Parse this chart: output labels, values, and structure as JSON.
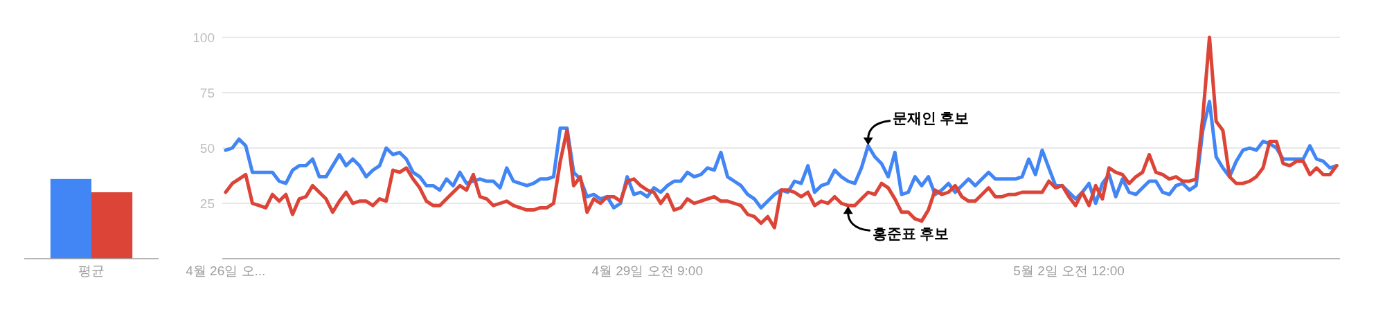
{
  "chart_data": [
    {
      "type": "bar",
      "categories": [
        "평균"
      ],
      "series": [
        {
          "color": "#4285f4",
          "values": [
            36
          ]
        },
        {
          "color": "#db4437",
          "values": [
            30
          ]
        }
      ],
      "ylim": [
        0,
        100
      ],
      "tick_labels": "x"
    },
    {
      "type": "line",
      "categories": [
        "4월 26일 오...",
        null,
        null,
        null,
        null,
        null,
        null,
        null,
        null,
        null,
        null,
        null,
        null,
        null,
        null,
        null,
        null,
        null,
        null,
        null,
        null,
        null,
        null,
        null,
        null,
        null,
        null,
        null,
        null,
        null,
        null,
        null,
        null,
        null,
        null,
        null,
        null,
        null,
        null,
        null,
        null,
        null,
        null,
        null,
        null,
        null,
        null,
        null,
        null,
        null,
        null,
        null,
        null,
        null,
        null,
        null,
        null,
        null,
        null,
        null,
        null,
        null,
        null,
        "4월 29일 오전 9:00",
        null,
        null,
        null,
        null,
        null,
        null,
        null,
        null,
        null,
        null,
        null,
        null,
        null,
        null,
        null,
        null,
        null,
        null,
        null,
        null,
        null,
        null,
        null,
        null,
        null,
        null,
        null,
        null,
        null,
        null,
        null,
        null,
        null,
        null,
        null,
        null,
        null,
        null,
        null,
        null,
        null,
        null,
        null,
        null,
        null,
        null,
        null,
        null,
        null,
        null,
        null,
        null,
        null,
        null,
        null,
        null,
        null,
        null,
        null,
        null,
        null,
        null,
        "5월 2일 오전 12:00",
        null,
        null,
        null,
        null,
        null,
        null,
        null,
        null,
        null,
        null,
        null,
        null,
        null,
        null,
        null,
        null,
        null,
        null,
        null,
        null,
        null,
        null,
        null,
        null,
        null,
        null,
        null,
        null,
        null,
        null,
        null,
        null,
        null,
        null,
        null,
        null,
        null,
        null,
        null,
        null
      ],
      "ylim": [
        0,
        100
      ],
      "yticks": [
        25,
        50,
        75,
        100
      ],
      "grid": "y",
      "series": [
        {
          "name": "문재인 후보",
          "color": "#4285f4",
          "values": [
            49,
            50,
            54,
            51,
            39,
            39,
            39,
            39,
            35,
            34,
            40,
            42,
            42,
            45,
            37,
            37,
            42,
            47,
            42,
            45,
            42,
            37,
            40,
            42,
            50,
            47,
            48,
            45,
            39,
            37,
            33,
            33,
            31,
            36,
            33,
            39,
            34,
            35,
            36,
            35,
            35,
            32,
            41,
            35,
            34,
            33,
            34,
            36,
            36,
            37,
            59,
            59,
            39,
            36,
            28,
            29,
            27,
            28,
            23,
            25,
            37,
            29,
            30,
            28,
            32,
            30,
            33,
            35,
            35,
            39,
            37,
            38,
            41,
            40,
            48,
            37,
            35,
            33,
            29,
            27,
            23,
            26,
            29,
            31,
            30,
            35,
            34,
            42,
            30,
            33,
            34,
            40,
            37,
            35,
            34,
            41,
            51,
            46,
            43,
            37,
            48,
            29,
            30,
            37,
            33,
            37,
            29,
            31,
            34,
            30,
            33,
            36,
            33,
            36,
            39,
            36,
            36,
            36,
            36,
            37,
            45,
            38,
            49,
            41,
            33,
            33,
            30,
            27,
            30,
            34,
            25,
            34,
            38,
            28,
            36,
            30,
            29,
            32,
            35,
            35,
            30,
            29,
            33,
            34,
            31,
            33,
            58,
            71,
            46,
            41,
            37,
            44,
            49,
            50,
            49,
            53,
            52,
            50,
            45,
            45,
            45,
            45,
            51,
            45,
            44,
            41,
            42
          ]
        },
        {
          "name": "홍준표 후보",
          "color": "#db4437",
          "values": [
            30,
            34,
            36,
            38,
            25,
            24,
            23,
            29,
            26,
            29,
            20,
            27,
            28,
            33,
            30,
            27,
            21,
            26,
            30,
            25,
            26,
            26,
            24,
            27,
            26,
            40,
            39,
            41,
            36,
            32,
            26,
            24,
            24,
            27,
            30,
            33,
            31,
            38,
            28,
            27,
            24,
            25,
            26,
            24,
            23,
            22,
            22,
            23,
            23,
            25,
            44,
            58,
            33,
            37,
            21,
            27,
            25,
            28,
            28,
            26,
            35,
            36,
            33,
            31,
            30,
            25,
            29,
            22,
            23,
            27,
            25,
            26,
            27,
            28,
            26,
            26,
            25,
            24,
            20,
            19,
            16,
            19,
            14,
            31,
            31,
            30,
            28,
            30,
            24,
            26,
            25,
            28,
            25,
            24,
            24,
            27,
            30,
            29,
            34,
            32,
            27,
            21,
            21,
            18,
            17,
            22,
            31,
            29,
            30,
            33,
            28,
            26,
            26,
            29,
            32,
            28,
            28,
            29,
            29,
            30,
            30,
            30,
            30,
            35,
            32,
            33,
            28,
            24,
            30,
            24,
            33,
            27,
            41,
            39,
            38,
            34,
            37,
            39,
            47,
            39,
            38,
            36,
            37,
            35,
            35,
            36,
            64,
            100,
            62,
            58,
            37,
            34,
            34,
            35,
            37,
            41,
            53,
            53,
            43,
            42,
            44,
            44,
            38,
            41,
            38,
            38,
            42
          ]
        }
      ]
    }
  ]
}
